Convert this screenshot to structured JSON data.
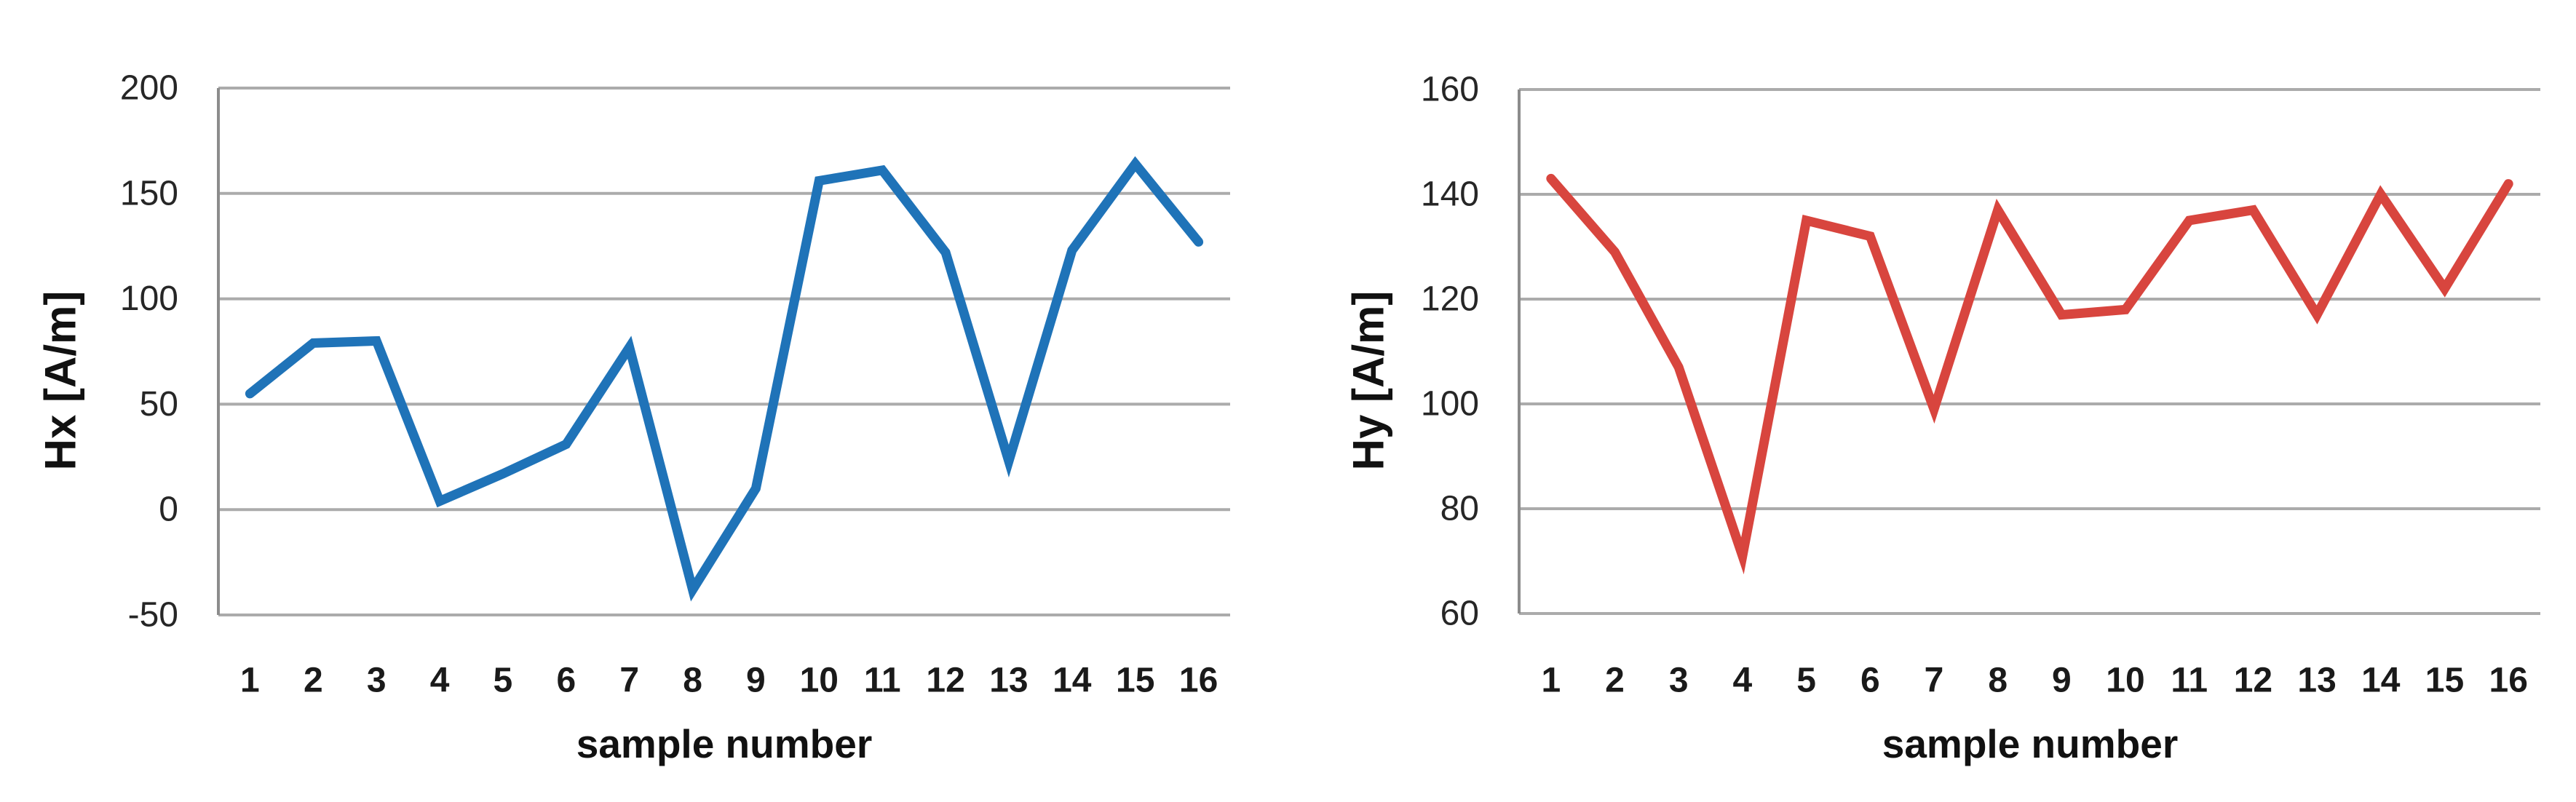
{
  "page": {
    "background": "#ffffff"
  },
  "styles": {
    "grid_color": "#ababab",
    "axis_color": "#8c8c8c",
    "tick_text_color": "#262626",
    "label_text_color": "#1a1a1a",
    "hx_line_color": "#1f73b8",
    "hy_line_color": "#d8453e"
  },
  "chart_data": [
    {
      "type": "line",
      "title": "",
      "xlabel": "sample number",
      "ylabel": "Hx [A/m]",
      "categories": [
        "1",
        "2",
        "3",
        "4",
        "5",
        "6",
        "7",
        "8",
        "9",
        "10",
        "11",
        "12",
        "13",
        "14",
        "15",
        "16"
      ],
      "values": [
        55,
        79,
        80,
        4,
        17,
        31,
        77,
        -38,
        10,
        156,
        161,
        122,
        23,
        123,
        164,
        127
      ],
      "ylim": [
        -50,
        200
      ],
      "yticks": [
        200,
        150,
        100,
        50,
        0,
        -50
      ],
      "line_color": "#1f73b8",
      "grid": true,
      "legend": "none"
    },
    {
      "type": "line",
      "title": "",
      "xlabel": "sample number",
      "ylabel": "Hy [A/m]",
      "categories": [
        "1",
        "2",
        "3",
        "4",
        "5",
        "6",
        "7",
        "8",
        "9",
        "10",
        "11",
        "12",
        "13",
        "14",
        "15",
        "16"
      ],
      "values": [
        143,
        129,
        107,
        71,
        135,
        132,
        99,
        137,
        117,
        118,
        135,
        137,
        117,
        140,
        122,
        142
      ],
      "ylim": [
        60,
        160
      ],
      "yticks": [
        160,
        140,
        120,
        100,
        80,
        60
      ],
      "line_color": "#d8453e",
      "grid": true,
      "legend": "none"
    }
  ]
}
